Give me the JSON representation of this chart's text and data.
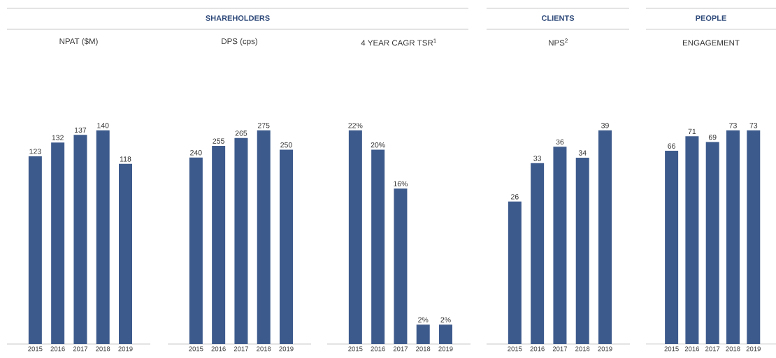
{
  "chart_data": [
    {
      "type": "bar",
      "title": "NPAT ($M)",
      "annotations": [
        "SHAREHOLDERS"
      ],
      "categories": [
        "2015",
        "2016",
        "2017",
        "2018",
        "2019"
      ],
      "values": [
        123,
        132,
        137,
        140,
        118
      ],
      "color": "#3d5a8c",
      "data_labels": true
    },
    {
      "type": "bar",
      "title": "DPS (cps)",
      "categories": [
        "2015",
        "2016",
        "2017",
        "2018",
        "2019"
      ],
      "values": [
        240,
        255,
        265,
        275,
        250
      ],
      "color": "#3d5a8c",
      "data_labels": true
    },
    {
      "type": "bar",
      "title": "4 YEAR CAGR TSR$^{1}$",
      "categories": [
        "2015",
        "2016",
        "2017",
        "2018",
        "2019"
      ],
      "values": [
        22,
        20,
        16,
        2,
        2
      ],
      "value_labels": [
        "22%",
        "20%",
        "16%",
        "2%",
        "2%"
      ],
      "color": "#3d5a8c"
    },
    {
      "type": "bar",
      "title": "NPS$^{2}$",
      "annotations": [
        "CLIENTS"
      ],
      "categories": [
        "2015",
        "2016",
        "2017",
        "2018",
        "2019"
      ],
      "values": [
        26,
        33,
        36,
        34,
        39
      ],
      "color": "#3d5a8c",
      "data_labels": true
    },
    {
      "type": "bar",
      "title": "ENGAGEMENT",
      "annotations": [
        "PEOPLE"
      ],
      "categories": [
        "2015",
        "2016",
        "2017",
        "2018",
        "2019"
      ],
      "values": [
        66,
        71,
        69,
        73,
        73
      ],
      "color": "#3d5a8c",
      "data_labels": true
    }
  ]
}
